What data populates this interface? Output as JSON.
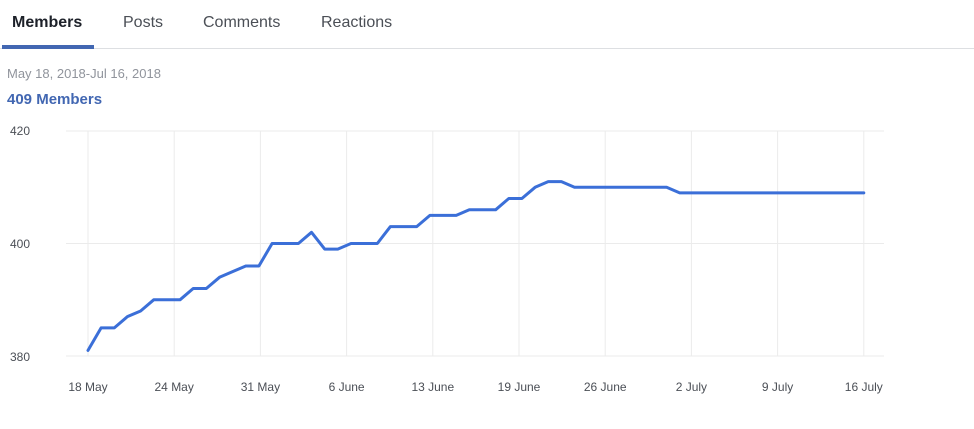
{
  "tabs": [
    {
      "label": "Members",
      "active": true
    },
    {
      "label": "Posts",
      "active": false
    },
    {
      "label": "Comments",
      "active": false
    },
    {
      "label": "Reactions",
      "active": false
    }
  ],
  "date_range": "May 18, 2018-Jul 16, 2018",
  "summary": "409  Members",
  "colors": {
    "accent": "#4267b2",
    "line": "#3b6fd8",
    "grid": "#ebebeb"
  },
  "chart_data": {
    "type": "line",
    "title": "409 Members",
    "xlabel": "",
    "ylabel": "Members",
    "ylim": [
      380,
      420
    ],
    "yticks": [
      420,
      400,
      380
    ],
    "xticks": [
      "18 May",
      "24 May",
      "31 May",
      "6 June",
      "13 June",
      "19 June",
      "26 June",
      "2 July",
      "9 July",
      "16 July"
    ],
    "grid": true,
    "legend": "none",
    "series": [
      {
        "name": "Members",
        "x": [
          "May 18",
          "May 19",
          "May 20",
          "May 21",
          "May 22",
          "May 23",
          "May 24",
          "May 25",
          "May 26",
          "May 27",
          "May 28",
          "May 29",
          "May 30",
          "May 31",
          "Jun 1",
          "Jun 2",
          "Jun 3",
          "Jun 4",
          "Jun 5",
          "Jun 6",
          "Jun 7",
          "Jun 8",
          "Jun 9",
          "Jun 10",
          "Jun 11",
          "Jun 12",
          "Jun 13",
          "Jun 14",
          "Jun 15",
          "Jun 16",
          "Jun 17",
          "Jun 18",
          "Jun 19",
          "Jun 20",
          "Jun 21",
          "Jun 22",
          "Jun 23",
          "Jun 24",
          "Jun 25",
          "Jun 26",
          "Jun 27",
          "Jun 28",
          "Jun 29",
          "Jun 30",
          "Jul 1",
          "Jul 2",
          "Jul 3",
          "Jul 4",
          "Jul 5",
          "Jul 6",
          "Jul 7",
          "Jul 8",
          "Jul 9",
          "Jul 10",
          "Jul 11",
          "Jul 12",
          "Jul 13",
          "Jul 14",
          "Jul 15",
          "Jul 16"
        ],
        "values": [
          381,
          385,
          385,
          387,
          388,
          390,
          390,
          390,
          392,
          392,
          394,
          395,
          396,
          396,
          400,
          400,
          400,
          402,
          399,
          399,
          400,
          400,
          400,
          403,
          403,
          403,
          405,
          405,
          405,
          406,
          406,
          406,
          408,
          408,
          410,
          411,
          411,
          410,
          410,
          410,
          410,
          410,
          410,
          410,
          410,
          409,
          409,
          409,
          409,
          409,
          409,
          409,
          409,
          409,
          409,
          409,
          409,
          409,
          409,
          409
        ]
      }
    ]
  }
}
